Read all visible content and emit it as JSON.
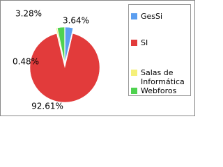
{
  "chart_data": {
    "type": "pie",
    "categories": [
      "GesSi",
      "SI",
      "Salas de Informática",
      "Webforos"
    ],
    "values": [
      3.64,
      92.61,
      0.48,
      3.28
    ],
    "value_labels": [
      "3.64%",
      "92.61%",
      "0.48%",
      "3.28%"
    ],
    "colors": [
      "#5b9ef0",
      "#e23b3b",
      "#f5f07a",
      "#4fd24f"
    ],
    "legend": "right"
  }
}
